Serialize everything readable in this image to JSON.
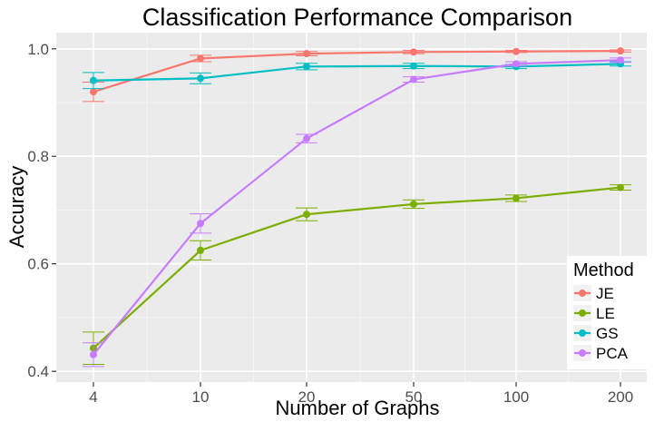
{
  "chart_data": {
    "type": "line",
    "title": "Classification Performance Comparison",
    "xlabel": "Number of Graphs",
    "ylabel": "Accuracy",
    "categories": [
      "4",
      "10",
      "20",
      "50",
      "100",
      "200"
    ],
    "ylim": [
      0.38,
      1.03
    ],
    "yticks": [
      0.4,
      0.6,
      0.8,
      1.0
    ],
    "ytick_labels": [
      "0.4",
      "0.6",
      "0.8",
      "1.0"
    ],
    "x_scale": "log",
    "grid": true,
    "legend": {
      "title": "Method",
      "placement": "bottom-right",
      "entries": [
        "JE",
        "LE",
        "GS",
        "PCA"
      ]
    },
    "series": [
      {
        "name": "JE",
        "color": "#F8766D",
        "values": [
          0.92,
          0.982,
          0.991,
          0.994,
          0.995,
          0.996
        ],
        "err": [
          0.018,
          0.006,
          0.004,
          0.003,
          0.002,
          0.002
        ]
      },
      {
        "name": "LE",
        "color": "#7CAE00",
        "values": [
          0.443,
          0.625,
          0.692,
          0.711,
          0.722,
          0.742
        ],
        "err": [
          0.03,
          0.018,
          0.012,
          0.008,
          0.006,
          0.005
        ]
      },
      {
        "name": "GS",
        "color": "#00BFC4",
        "values": [
          0.941,
          0.945,
          0.967,
          0.968,
          0.967,
          0.972
        ],
        "err": [
          0.015,
          0.01,
          0.006,
          0.005,
          0.004,
          0.004
        ]
      },
      {
        "name": "PCA",
        "color": "#C77CFF",
        "values": [
          0.431,
          0.675,
          0.833,
          0.943,
          0.972,
          0.979
        ],
        "err": [
          0.022,
          0.018,
          0.008,
          0.005,
          0.004,
          0.004
        ]
      }
    ]
  }
}
